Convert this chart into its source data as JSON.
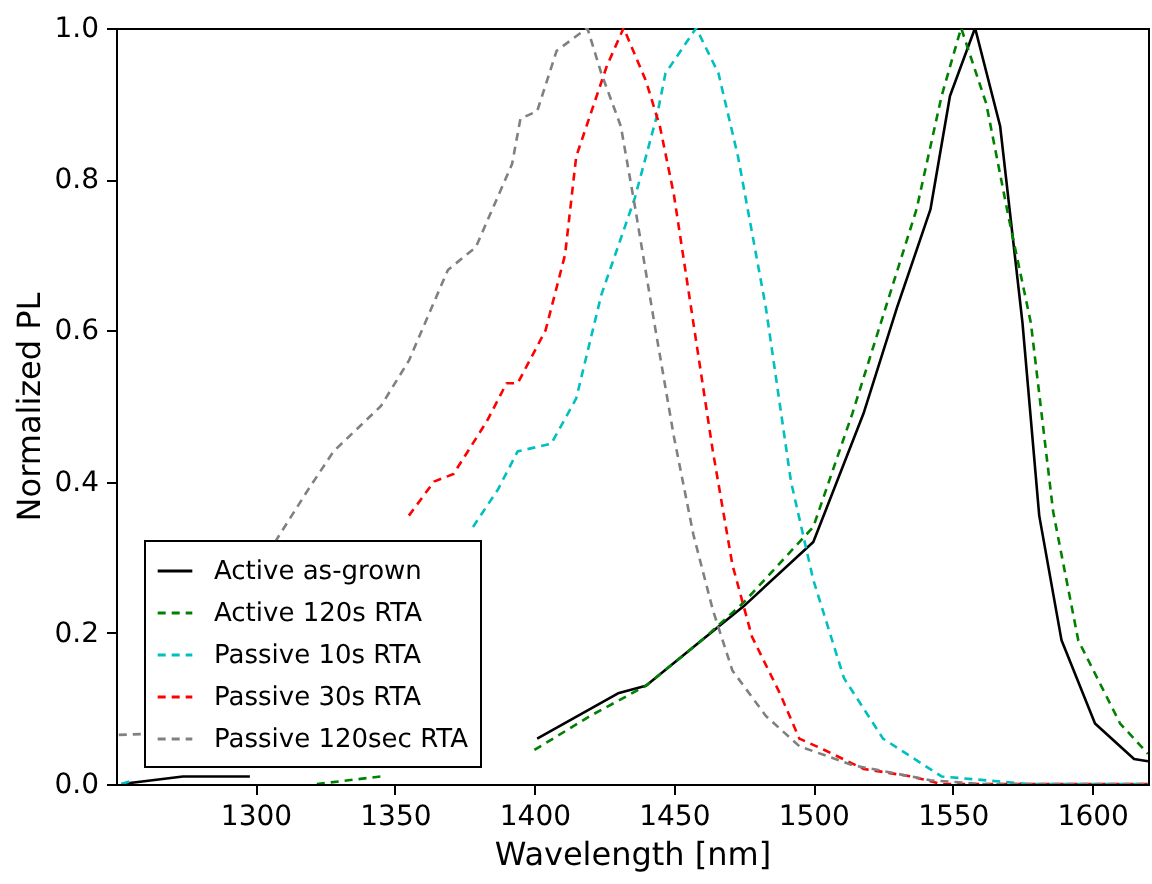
{
  "chart_data": {
    "type": "line",
    "xlabel": "Wavelength [nm]",
    "ylabel": "Normalized PL",
    "xlim": [
      1250,
      1620
    ],
    "xticks": [
      1300,
      1350,
      1400,
      1450,
      1500,
      1550,
      1600
    ],
    "ylim": [
      0,
      1.0
    ],
    "yticks": [
      {
        "value": 0,
        "label": "0.0"
      },
      0.2,
      0.4,
      0.6,
      0.8,
      {
        "value": 1.0,
        "label": "1.0"
      }
    ],
    "grid": false,
    "legend": "bottom left",
    "marker": "none",
    "series": [
      {
        "name": "Active as-grown",
        "color": "#000000",
        "line_style": "solid",
        "x": [
          1252,
          1274,
          1298,
          null,
          1401,
          1430,
          1440,
          1460,
          1475,
          1500,
          1518,
          1530,
          1542,
          1549,
          1558,
          1567,
          1575,
          1581,
          1589,
          1601,
          1615,
          1620
        ],
        "values": [
          0.0,
          0.01,
          0.01,
          null,
          0.06,
          0.12,
          0.13,
          0.19,
          0.235,
          0.32,
          0.49,
          0.63,
          0.76,
          0.91,
          1.0,
          0.87,
          0.61,
          0.355,
          0.19,
          0.08,
          0.033,
          0.03
        ]
      },
      {
        "name": "Active 120s RTA",
        "color": "#008000",
        "line_style": "dashed",
        "x": [
          1322,
          1345,
          1390,
          1400,
          1420,
          1440,
          1460,
          1475,
          1500,
          1514,
          1537,
          1546,
          1553,
          1562,
          1570,
          1578,
          1586,
          1595,
          1610,
          1620
        ],
        "values": [
          0.0,
          0.01,
          null,
          0.045,
          0.09,
          0.13,
          0.19,
          0.24,
          0.34,
          0.49,
          0.76,
          0.91,
          1.0,
          0.9,
          0.75,
          0.61,
          0.36,
          0.19,
          0.08,
          0.04
        ]
      },
      {
        "name": "Passive 10s RTA",
        "color": "#00bfbf",
        "line_style": "dashed",
        "x": [
          1252,
          1256,
          1300,
          1378,
          1387,
          1394,
          1406,
          1415,
          1424,
          1436,
          1444,
          1447,
          1458,
          1466,
          1473,
          1483,
          1492,
          1500,
          1511,
          1525,
          1546,
          1577,
          1620
        ],
        "values": [
          0.0,
          0.005,
          null,
          0.34,
          0.39,
          0.44,
          0.45,
          0.51,
          0.647,
          0.775,
          0.885,
          0.94,
          1.0,
          0.94,
          0.83,
          0.63,
          0.4,
          0.27,
          0.14,
          0.06,
          0.01,
          0.0,
          0.0
        ]
      },
      {
        "name": "Passive 30s RTA",
        "color": "#ff0000",
        "line_style": "dashed",
        "x": [
          1355,
          1364,
          1371,
          1383,
          1390,
          1394,
          1404,
          1411,
          1415,
          1426,
          1432,
          1440,
          1445,
          1450,
          1457,
          1464,
          1471,
          1478,
          1488,
          1495,
          1504,
          1518,
          1535,
          1546,
          1620
        ],
        "values": [
          0.355,
          0.4,
          0.41,
          0.48,
          0.53,
          0.53,
          0.6,
          0.7,
          0.83,
          0.95,
          1.0,
          0.93,
          0.87,
          0.78,
          0.61,
          0.44,
          0.29,
          0.195,
          0.12,
          0.06,
          0.045,
          0.02,
          0.01,
          0.0,
          0.0
        ]
      },
      {
        "name": "Passive 120sec RTA",
        "color": "#808080",
        "line_style": "dashed",
        "x": [
          1251,
          1259,
          1280,
          1307,
          1319,
          1328,
          1345,
          1355,
          1369,
          1379,
          1392,
          1395,
          1401,
          1408,
          1419,
          1424,
          1431,
          1436,
          1443,
          1450,
          1457,
          1464,
          1471,
          1483,
          1495,
          1514,
          1542,
          1560,
          1620
        ],
        "values": [
          0.065,
          0.066,
          null,
          0.32,
          0.39,
          0.44,
          0.5,
          0.56,
          0.68,
          0.71,
          0.82,
          0.88,
          0.89,
          0.97,
          1.0,
          0.94,
          0.87,
          0.765,
          0.61,
          0.46,
          0.33,
          0.23,
          0.15,
          0.09,
          0.05,
          0.025,
          0.005,
          0.0,
          0.0
        ]
      }
    ]
  }
}
